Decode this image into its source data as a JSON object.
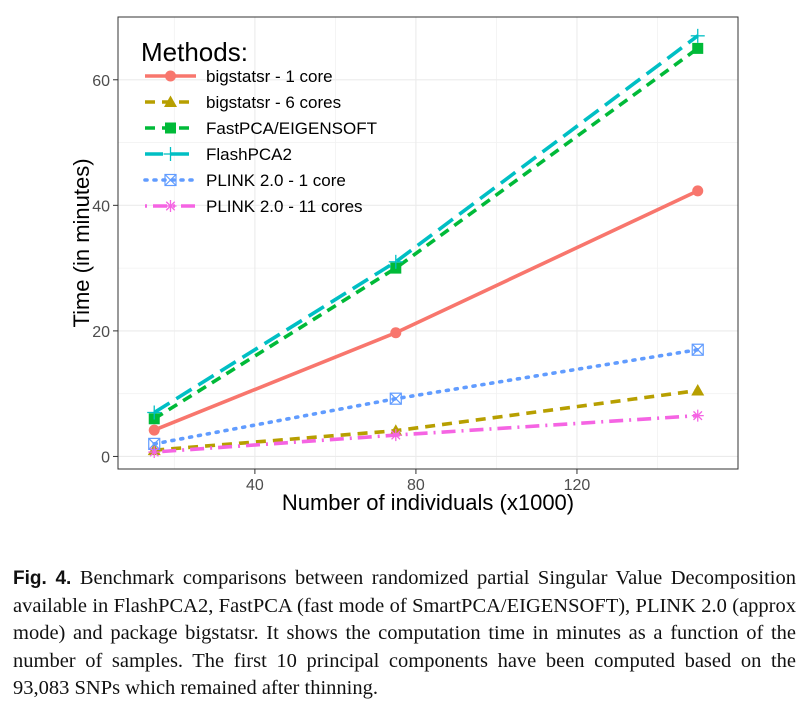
{
  "chart_data": {
    "type": "line",
    "xlabel": "Number of individuals (x1000)",
    "ylabel": "Time (in minutes)",
    "xlim": [
      6,
      160
    ],
    "ylim": [
      -2,
      70
    ],
    "xticks": [
      40,
      80,
      120
    ],
    "yticks": [
      0,
      20,
      40,
      60
    ],
    "grid": true,
    "legend_title": "Methods:",
    "legend_position": "top-left",
    "x": [
      15,
      75,
      150
    ],
    "series": [
      {
        "name": "bigstatsr - 1 core",
        "values": [
          4.2,
          19.7,
          42.3
        ],
        "color": "#f8766d",
        "line": "solid",
        "marker": "circle"
      },
      {
        "name": "bigstatsr - 6 cores",
        "values": [
          1.0,
          4.1,
          10.5
        ],
        "color": "#b79f00",
        "line": "dashed",
        "marker": "triangle"
      },
      {
        "name": "FastPCA/EIGENSOFT",
        "values": [
          6.0,
          30.0,
          65.0
        ],
        "color": "#00ba38",
        "line": "dashed",
        "marker": "square"
      },
      {
        "name": "FlashPCA2",
        "values": [
          7.0,
          31.0,
          67.0
        ],
        "color": "#00bfc4",
        "line": "longdash",
        "marker": "plus"
      },
      {
        "name": "PLINK 2.0 - 1 core",
        "values": [
          2.0,
          9.2,
          17.0
        ],
        "color": "#619cff",
        "line": "dotted",
        "marker": "boxcross"
      },
      {
        "name": "PLINK 2.0 - 11 cores",
        "values": [
          0.7,
          3.4,
          6.5
        ],
        "color": "#f564e3",
        "line": "dotdash",
        "marker": "asterisk"
      }
    ]
  },
  "caption": {
    "label": "Fig. 4.",
    "text": "Benchmark comparisons between randomized partial Singular Value Decomposition available in FlashPCA2, FastPCA (fast mode of SmartPCA/EIGENSOFT), PLINK 2.0 (approx mode) and package bigstatsr. It shows the computation time in minutes as a function of the number of samples. The first 10 principal components have been computed based on the 93,083 SNPs which remained after thinning."
  }
}
